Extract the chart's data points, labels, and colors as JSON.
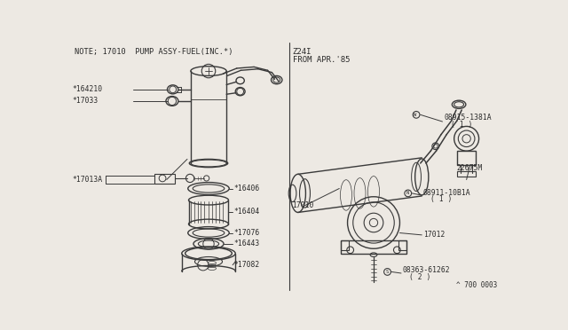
{
  "bg_color": "#ede9e3",
  "line_color": "#3a3a3a",
  "text_color": "#2a2a2a",
  "left_note": "NOTE; 17010  PUMP ASSY-FUEL(INC.*)",
  "right_label1": "Z24I",
  "right_label2": "FROM APR.'85",
  "bottom_right": "^ 700 0003"
}
